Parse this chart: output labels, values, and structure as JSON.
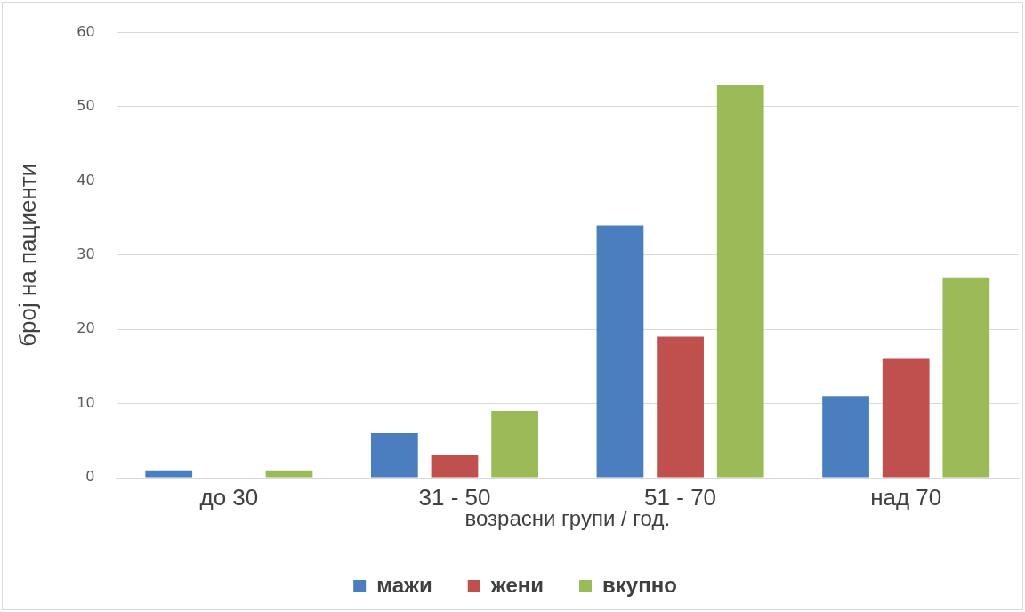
{
  "chart_data": {
    "type": "bar",
    "xlabel": "возрасни групи / год.",
    "ylabel": "број на пациенти",
    "categories": [
      "до 30",
      "31 - 50",
      "51 - 70",
      "над 70"
    ],
    "series": [
      {
        "name": "мажи",
        "color": "#4a7ebf",
        "values": [
          1,
          6,
          34,
          11
        ]
      },
      {
        "name": "жени",
        "color": "#c0504d",
        "values": [
          0,
          3,
          19,
          16
        ]
      },
      {
        "name": "вкупно",
        "color": "#9bbb59",
        "values": [
          1,
          9,
          53,
          27
        ]
      }
    ],
    "ylim": [
      0,
      60
    ],
    "yticks": [
      0,
      10,
      20,
      30,
      40,
      50,
      60
    ],
    "grid": "y",
    "legend": "bottom"
  }
}
